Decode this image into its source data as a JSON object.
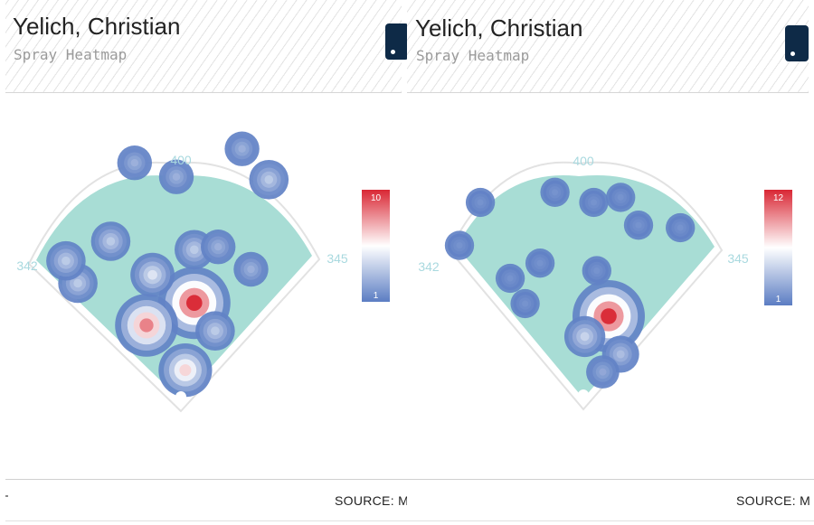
{
  "colors": {
    "field": "#a8ddd5",
    "field_outline": "#dedede",
    "density_low": "#5b7dc3",
    "density_mid": "#ffffff",
    "density_high": "#d92734",
    "title_text": "#222222",
    "subtitle_text": "#9a9a9a",
    "badge": "#0e2a47",
    "label_text": "#a9d9df"
  },
  "icons": {
    "badge": "team-logo-icon"
  },
  "panels": [
    {
      "player": "Yelich, Christian",
      "subtitle": "Spray Heatmap",
      "source": "SOURCE: M",
      "chart_data": {
        "type": "heatmap",
        "distance_labels": {
          "left_field": "342",
          "center_field": "400",
          "right_field": "345"
        },
        "legend": {
          "min": "1",
          "max": "10",
          "min_value": 1,
          "max_value": 10
        },
        "hotspots": [
          {
            "x": 0.56,
            "y": 0.62,
            "intensity": 10
          },
          {
            "x": 0.4,
            "y": 0.7,
            "intensity": 8
          },
          {
            "x": 0.63,
            "y": 0.72,
            "intensity": 3
          },
          {
            "x": 0.53,
            "y": 0.86,
            "intensity": 6
          },
          {
            "x": 0.28,
            "y": 0.4,
            "intensity": 3
          },
          {
            "x": 0.42,
            "y": 0.52,
            "intensity": 4
          },
          {
            "x": 0.56,
            "y": 0.43,
            "intensity": 3
          },
          {
            "x": 0.17,
            "y": 0.55,
            "intensity": 3
          },
          {
            "x": 0.13,
            "y": 0.47,
            "intensity": 3
          },
          {
            "x": 0.75,
            "y": 0.5,
            "intensity": 2
          },
          {
            "x": 0.64,
            "y": 0.42,
            "intensity": 2
          },
          {
            "x": 0.5,
            "y": 0.17,
            "intensity": 2
          },
          {
            "x": 0.72,
            "y": 0.07,
            "intensity": 2
          },
          {
            "x": 0.81,
            "y": 0.18,
            "intensity": 3
          },
          {
            "x": 0.36,
            "y": 0.12,
            "intensity": 2
          }
        ]
      }
    },
    {
      "player": "Yelich, Christian",
      "subtitle": "Spray Heatmap",
      "source": "SOURCE: M",
      "chart_data": {
        "type": "heatmap",
        "distance_labels": {
          "left_field": "342",
          "center_field": "400",
          "right_field": "345"
        },
        "legend": {
          "min": "1",
          "max": "12",
          "min_value": 1,
          "max_value": 12
        },
        "hotspots": [
          {
            "x": 0.6,
            "y": 0.65,
            "intensity": 12
          },
          {
            "x": 0.52,
            "y": 0.73,
            "intensity": 4
          },
          {
            "x": 0.64,
            "y": 0.8,
            "intensity": 3
          },
          {
            "x": 0.58,
            "y": 0.87,
            "intensity": 2
          },
          {
            "x": 0.1,
            "y": 0.37,
            "intensity": 1
          },
          {
            "x": 0.27,
            "y": 0.5,
            "intensity": 1
          },
          {
            "x": 0.32,
            "y": 0.6,
            "intensity": 1
          },
          {
            "x": 0.55,
            "y": 0.2,
            "intensity": 1
          },
          {
            "x": 0.64,
            "y": 0.18,
            "intensity": 1
          },
          {
            "x": 0.37,
            "y": 0.44,
            "intensity": 1
          },
          {
            "x": 0.56,
            "y": 0.47,
            "intensity": 1
          },
          {
            "x": 0.17,
            "y": 0.2,
            "intensity": 1
          },
          {
            "x": 0.42,
            "y": 0.16,
            "intensity": 1
          },
          {
            "x": 0.7,
            "y": 0.29,
            "intensity": 1
          },
          {
            "x": 0.84,
            "y": 0.3,
            "intensity": 1
          }
        ]
      }
    }
  ]
}
